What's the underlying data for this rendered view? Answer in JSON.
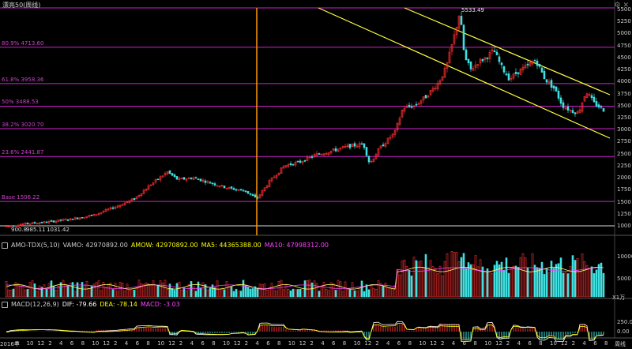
{
  "window": {
    "title": "漂亮50(周线)",
    "icons": [
      "gear-icon",
      "close-icon"
    ]
  },
  "price_axis": {
    "ticks": [
      "5500",
      "5250",
      "5000",
      "4750",
      "4500",
      "4250",
      "4000",
      "3750",
      "3500",
      "3250",
      "3000",
      "2750",
      "2500",
      "2250",
      "2000",
      "1750",
      "1500",
      "1250",
      "1000"
    ]
  },
  "fib_levels": [
    {
      "label": "80.9% 4713.60",
      "value": 4713.6
    },
    {
      "label": "61.8% 3958.36",
      "value": 3958.36
    },
    {
      "label": "50% 3488.53",
      "value": 3488.53
    },
    {
      "label": "38.2% 3020.70",
      "value": 3020.7
    },
    {
      "label": "23.6% 2441.87",
      "value": 2441.87
    },
    {
      "label": "Base 1506.22",
      "value": 1506.22
    }
  ],
  "top_line_value": 5533.49,
  "peak_label": "5533.49",
  "low_labels": [
    "900.8",
    "985.11",
    "1031.42"
  ],
  "low_line_value": 1000,
  "volume_header": {
    "indicator": "AMO-TDX(5,10)",
    "vamo": "VAMO: 42970892.00",
    "amow": "AMOW: 42970892.00",
    "ma5": "MA5: 44365388.00",
    "ma10": "MA10: 47998312.00",
    "colors": {
      "indicator": "#cccccc",
      "amow": "#ffff00",
      "ma5": "#ffff00",
      "ma10": "#ff40ff"
    }
  },
  "volume_axis": {
    "ticks": [
      "10000",
      "5000"
    ],
    "unit": "X1万"
  },
  "macd_header": {
    "indicator": "MACD(12,26,9)",
    "dif": "DIF: -79.66",
    "dea": "DEA: -78.14",
    "macd": "MACD: -3.03",
    "colors": {
      "dif": "#ffffff",
      "dea": "#ffff00",
      "macd": "#ff40ff"
    }
  },
  "macd_axis": {
    "ticks": [
      "250.0",
      "0.00"
    ]
  },
  "x_axis": {
    "labels": [
      "2016年",
      "8",
      "10",
      "12",
      "2",
      "4",
      "6",
      "8",
      "10",
      "12",
      "2",
      "4",
      "6",
      "8",
      "10",
      "12",
      "2",
      "4",
      "6",
      "8",
      "10",
      "12",
      "2",
      "4",
      "6",
      "8",
      "10",
      "12",
      "2",
      "4",
      "6",
      "8",
      "10",
      "12",
      "2",
      "4",
      "6",
      "8",
      "10",
      "12",
      "2",
      "4",
      "6",
      "8",
      "10",
      "12",
      "2",
      "4",
      "6",
      "8",
      "10",
      "12",
      "2",
      "4",
      "6",
      "8"
    ],
    "period_label": "周线"
  },
  "colors": {
    "up": "#ff3030",
    "down": "#40e0e0",
    "fib": "#d020d0",
    "trend": "#ffff40",
    "marker": "#ff9900",
    "grid": "#b01ab0"
  }
}
